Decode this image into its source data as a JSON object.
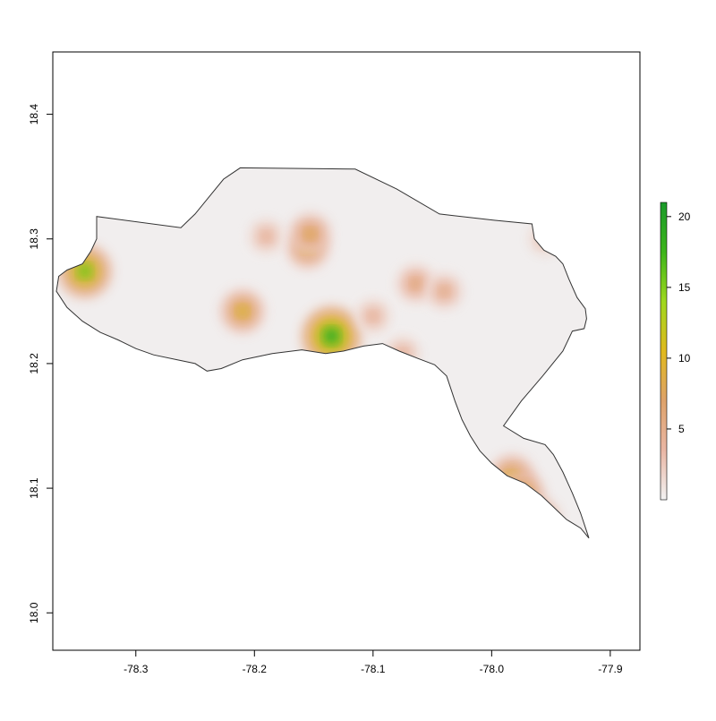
{
  "map": {
    "x_axis": {
      "range": [
        -78.37,
        -77.875
      ],
      "ticks": [
        -78.3,
        -78.2,
        -78.1,
        -78.0,
        -77.9
      ],
      "tick_labels": [
        "-78.3",
        "-78.2",
        "-78.1",
        "-78.0",
        "-77.9"
      ]
    },
    "y_axis": {
      "range": [
        17.97,
        18.45
      ],
      "ticks": [
        18.0,
        18.1,
        18.2,
        18.3,
        18.4
      ],
      "tick_labels": [
        "18.0",
        "18.1",
        "18.2",
        "18.3",
        "18.4"
      ]
    },
    "outline_color": "#333333",
    "region_outline_lonlat": [
      [
        -78.365,
        18.27
      ],
      [
        -78.358,
        18.275
      ],
      [
        -78.345,
        18.28
      ],
      [
        -78.338,
        18.29
      ],
      [
        -78.333,
        18.3
      ],
      [
        -78.333,
        18.318
      ],
      [
        -78.262,
        18.309
      ],
      [
        -78.25,
        18.32
      ],
      [
        -78.238,
        18.334
      ],
      [
        -78.226,
        18.348
      ],
      [
        -78.212,
        18.357
      ],
      [
        -78.115,
        18.356
      ],
      [
        -78.08,
        18.34
      ],
      [
        -78.044,
        18.32
      ],
      [
        -77.998,
        18.315
      ],
      [
        -77.966,
        18.312
      ],
      [
        -77.964,
        18.3
      ],
      [
        -77.956,
        18.291
      ],
      [
        -77.946,
        18.286
      ],
      [
        -77.94,
        18.28
      ],
      [
        -77.935,
        18.268
      ],
      [
        -77.928,
        18.253
      ],
      [
        -77.921,
        18.244
      ],
      [
        -77.92,
        18.236
      ],
      [
        -77.922,
        18.228
      ],
      [
        -77.932,
        18.226
      ],
      [
        -77.94,
        18.21
      ],
      [
        -77.957,
        18.19
      ],
      [
        -77.975,
        18.17
      ],
      [
        -77.99,
        18.15
      ],
      [
        -77.973,
        18.14
      ],
      [
        -77.955,
        18.135
      ],
      [
        -77.948,
        18.127
      ],
      [
        -77.94,
        18.113
      ],
      [
        -77.932,
        18.096
      ],
      [
        -77.925,
        18.08
      ],
      [
        -77.918,
        18.06
      ],
      [
        -77.925,
        18.068
      ],
      [
        -77.937,
        18.075
      ],
      [
        -77.948,
        18.085
      ],
      [
        -77.958,
        18.094
      ],
      [
        -77.972,
        18.104
      ],
      [
        -77.987,
        18.11
      ],
      [
        -78.0,
        18.12
      ],
      [
        -78.01,
        18.13
      ],
      [
        -78.018,
        18.142
      ],
      [
        -78.025,
        18.155
      ],
      [
        -78.031,
        18.17
      ],
      [
        -78.038,
        18.19
      ],
      [
        -78.048,
        18.199
      ],
      [
        -78.062,
        18.204
      ],
      [
        -78.078,
        18.21
      ],
      [
        -78.092,
        18.216
      ],
      [
        -78.108,
        18.214
      ],
      [
        -78.125,
        18.21
      ],
      [
        -78.14,
        18.208
      ],
      [
        -78.16,
        18.211
      ],
      [
        -78.185,
        18.208
      ],
      [
        -78.21,
        18.203
      ],
      [
        -78.228,
        18.196
      ],
      [
        -78.24,
        18.194
      ],
      [
        -78.25,
        18.2
      ],
      [
        -78.265,
        18.203
      ],
      [
        -78.285,
        18.207
      ],
      [
        -78.3,
        18.212
      ],
      [
        -78.315,
        18.219
      ],
      [
        -78.33,
        18.225
      ],
      [
        -78.345,
        18.234
      ],
      [
        -78.358,
        18.245
      ],
      [
        -78.367,
        18.258
      ],
      [
        -78.365,
        18.27
      ]
    ],
    "hotspots_lonlat_value": [
      [
        -78.343,
        18.274,
        17
      ],
      [
        -78.135,
        18.222,
        21
      ],
      [
        -78.21,
        18.242,
        11
      ],
      [
        -78.155,
        18.293,
        10
      ],
      [
        -78.153,
        18.304,
        9
      ],
      [
        -77.983,
        18.109,
        11
      ],
      [
        -77.975,
        18.095,
        12
      ],
      [
        -77.962,
        18.074,
        12
      ],
      [
        -78.064,
        18.264,
        7
      ],
      [
        -78.04,
        18.258,
        6
      ],
      [
        -78.19,
        18.302,
        5
      ],
      [
        -77.955,
        18.3,
        4
      ],
      [
        -78.075,
        18.208,
        5
      ],
      [
        -78.1,
        18.238,
        5
      ]
    ]
  },
  "colorbar": {
    "min": 0,
    "max": 21,
    "ticks": [
      5,
      10,
      15,
      20
    ],
    "tick_labels": [
      "5",
      "10",
      "15",
      "20"
    ],
    "colors": [
      "#f2f2f2",
      "#e9b6a4",
      "#dea26a",
      "#e0b91d",
      "#9fd81e",
      "#3db51b",
      "#1a9a2a"
    ]
  }
}
